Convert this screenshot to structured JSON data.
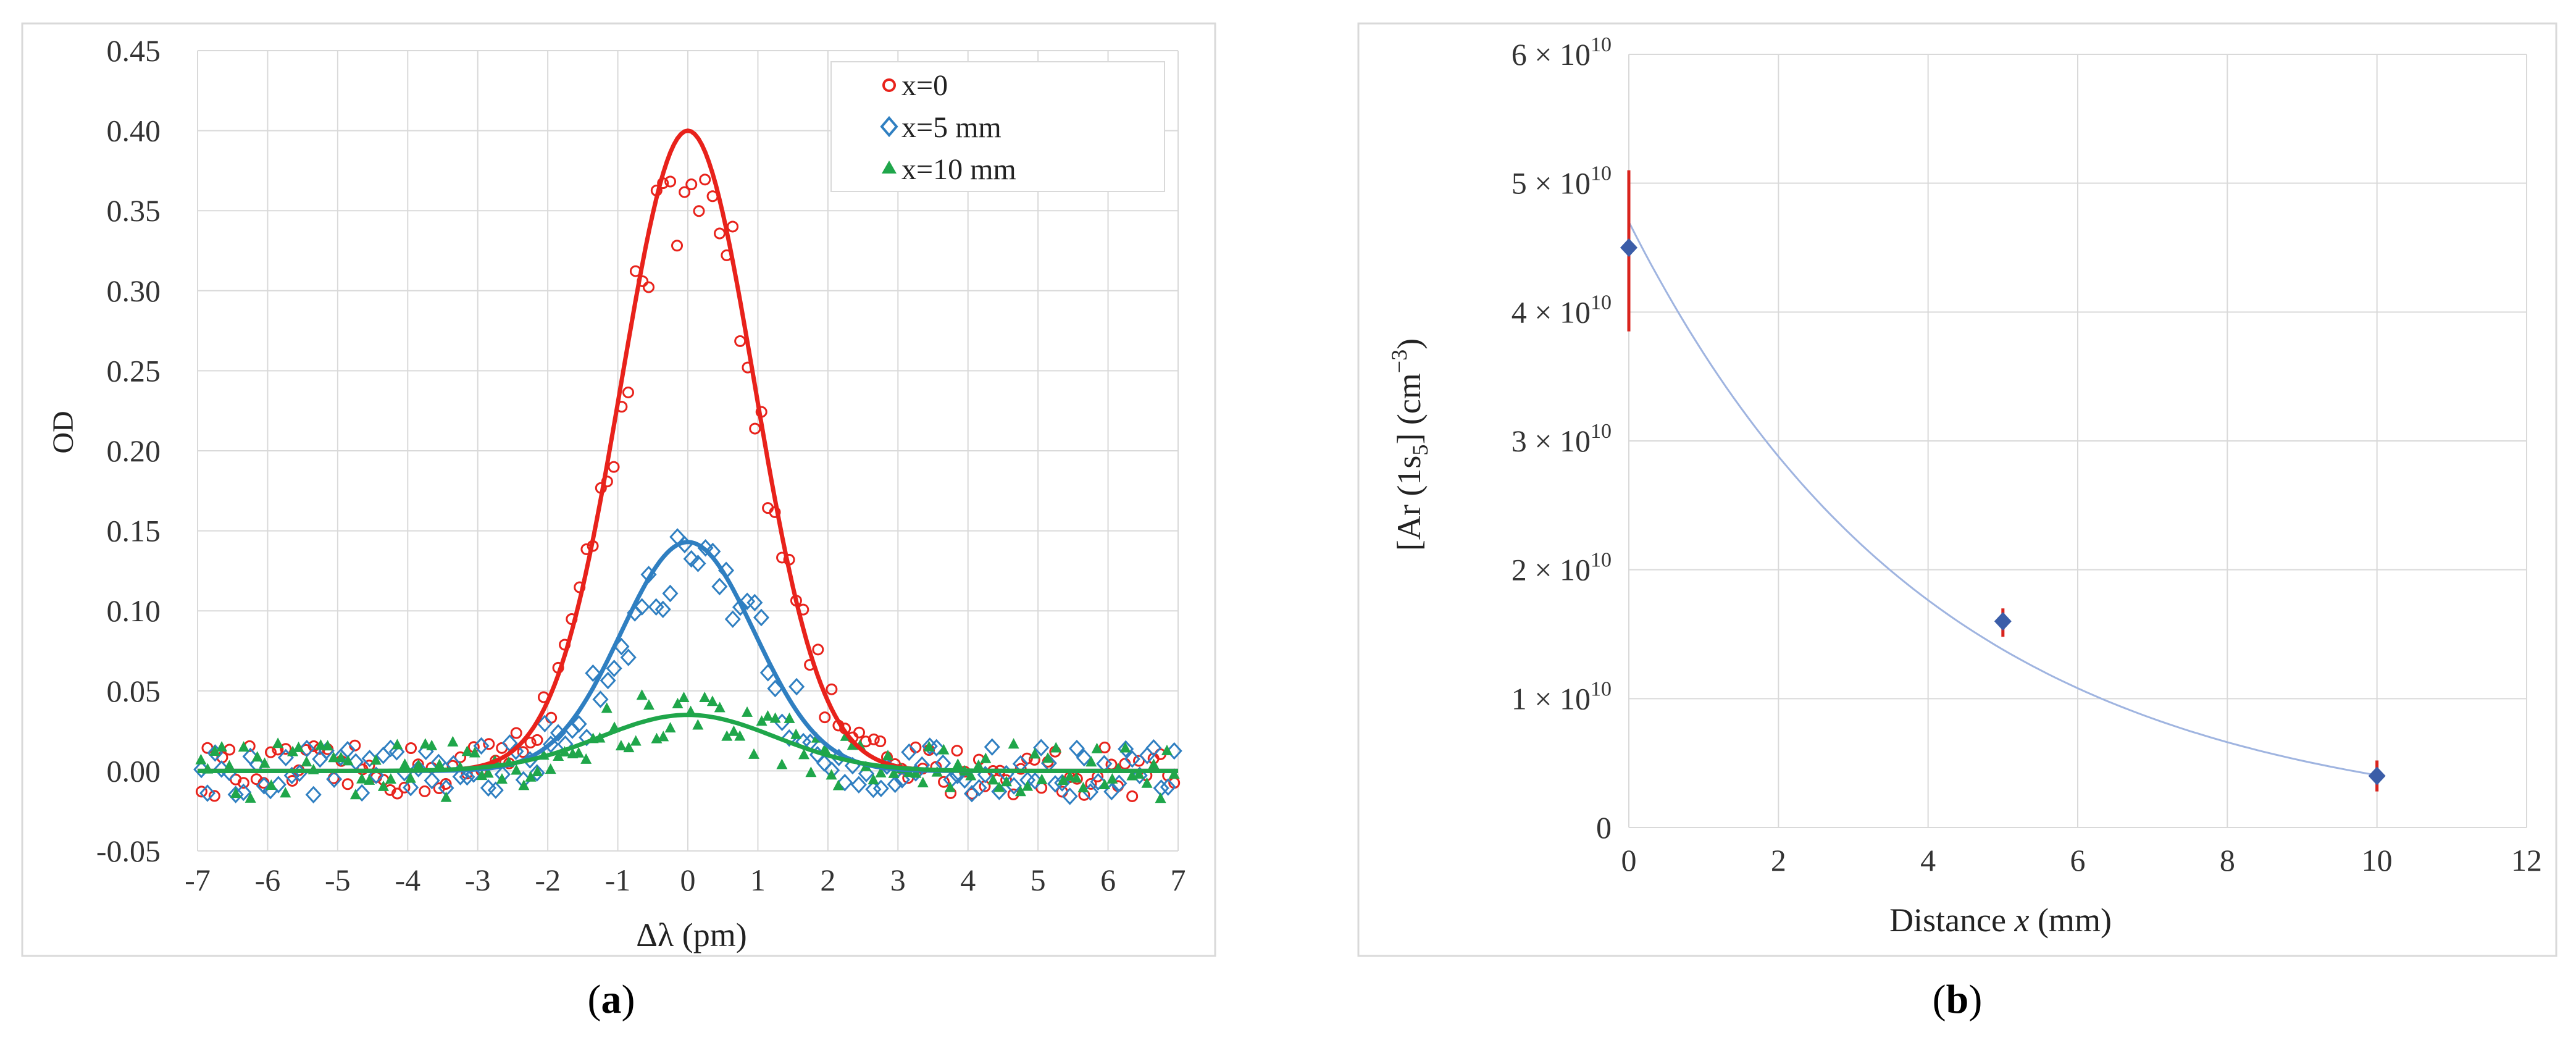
{
  "chart_data": [
    {
      "panel_label": "(a)",
      "type": "scatter",
      "xlabel": "Δλ (pm)",
      "ylabel": "OD",
      "xlim": [
        -7,
        7
      ],
      "ylim": [
        -0.05,
        0.45
      ],
      "x_ticks": [
        "-7",
        "-6",
        "-5",
        "-4",
        "-3",
        "-2",
        "-1",
        "0",
        "1",
        "2",
        "3",
        "4",
        "5",
        "6",
        "7"
      ],
      "y_ticks": [
        "-0.05",
        "0.00",
        "0.05",
        "0.10",
        "0.15",
        "0.20",
        "0.25",
        "0.30",
        "0.35",
        "0.40",
        "0.45"
      ],
      "grid": true,
      "legend_position": "top-right",
      "series": [
        {
          "name": "x=0",
          "color": "#e8221b",
          "marker": "circle",
          "fit_amplitude": 0.4,
          "fit_center": 0.0,
          "fit_width": 0.95
        },
        {
          "name": "x=5 mm",
          "color": "#2f7fc1",
          "marker": "diamond",
          "fit_amplitude": 0.143,
          "fit_center": 0.0,
          "fit_width": 0.95
        },
        {
          "name": "x=10 mm",
          "color": "#1fa64a",
          "marker": "triangle",
          "fit_amplitude": 0.035,
          "fit_center": 0.0,
          "fit_width": 1.25
        }
      ]
    },
    {
      "panel_label": "(b)",
      "type": "scatter",
      "xlabel_parts": {
        "pre": "Distance ",
        "italic": "x",
        "post": " (mm)"
      },
      "ylabel": "[Ar (1s5)] (cm-3)",
      "xlim": [
        0,
        12
      ],
      "ylim": [
        0,
        60000000000.0
      ],
      "x_ticks": [
        "0",
        "2",
        "4",
        "6",
        "8",
        "10",
        "12"
      ],
      "y_tick_labels": [
        {
          "value": 0,
          "text": "0",
          "exp": ""
        },
        {
          "value": 10000000000.0,
          "text": "1 × 10",
          "exp": "10"
        },
        {
          "value": 20000000000.0,
          "text": "2 × 10",
          "exp": "10"
        },
        {
          "value": 30000000000.0,
          "text": "3 × 10",
          "exp": "10"
        },
        {
          "value": 40000000000.0,
          "text": "4 × 10",
          "exp": "10"
        },
        {
          "value": 50000000000.0,
          "text": "5 × 10",
          "exp": "10"
        },
        {
          "value": 60000000000.0,
          "text": "6 × 10",
          "exp": "10"
        }
      ],
      "grid": true,
      "points": [
        {
          "x": 0,
          "y": 45000000000.0,
          "err_low": 38500000000.0,
          "err_high": 51000000000.0
        },
        {
          "x": 5,
          "y": 16000000000.0,
          "err_low": 14800000000.0,
          "err_high": 17000000000.0
        },
        {
          "x": 10,
          "y": 4000000000.0,
          "err_low": 2800000000.0,
          "err_high": 5200000000.0
        }
      ],
      "fit": {
        "a": 47000000000.0,
        "k": 0.245,
        "color": "#9fb4e0"
      },
      "marker_color": "#3b5da8",
      "error_color": "#d9231c"
    }
  ],
  "colors": {
    "grid": "#d9d9d9",
    "frame": "#d9d9d9"
  }
}
